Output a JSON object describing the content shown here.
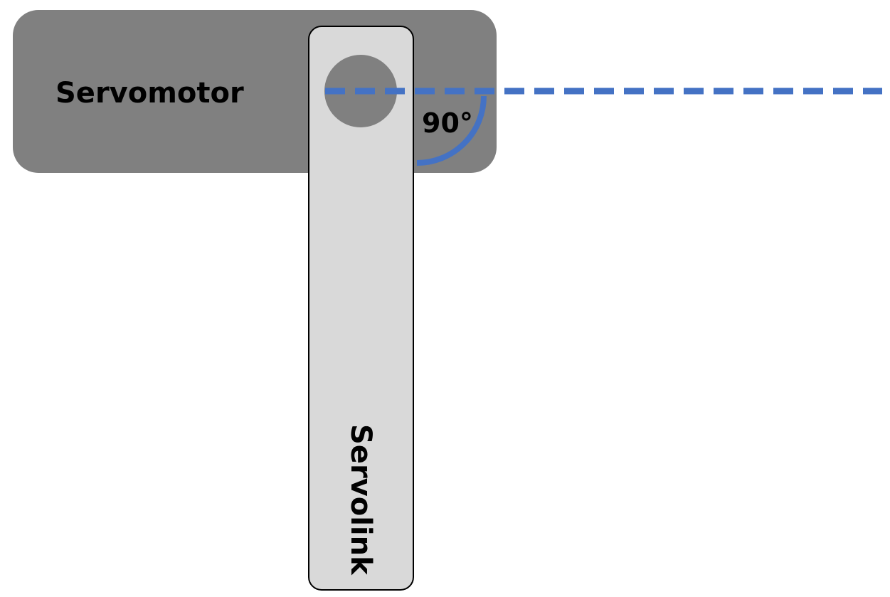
{
  "servomotor": {
    "label": "Servomotor",
    "body_color": "#808080",
    "hub_color": "#808080"
  },
  "servolink": {
    "label": "Servolink",
    "fill_color": "#d9d9d9",
    "outline_color": "#000000"
  },
  "angle": {
    "label": "90°",
    "color": "#4472c4"
  },
  "reference_line": {
    "color": "#4472c4",
    "style": "dashed"
  },
  "text_color": "#000000"
}
